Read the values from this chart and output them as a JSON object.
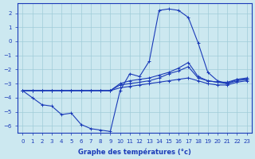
{
  "xlabel": "Graphe des températures (°c)",
  "xlim": [
    -0.5,
    23.5
  ],
  "ylim": [
    -6.5,
    2.7
  ],
  "yticks": [
    2,
    1,
    0,
    -1,
    -2,
    -3,
    -4,
    -5,
    -6
  ],
  "xticks": [
    0,
    1,
    2,
    3,
    4,
    5,
    6,
    7,
    8,
    9,
    10,
    11,
    12,
    13,
    14,
    15,
    16,
    17,
    18,
    19,
    20,
    21,
    22,
    23
  ],
  "bg_color": "#cce8f0",
  "line_color": "#1a3ab8",
  "grid_color": "#a0ccd8",
  "line1_y": [
    -3.5,
    -4.0,
    -4.5,
    -4.6,
    -5.2,
    -5.1,
    -5.9,
    -6.2,
    -6.3,
    -6.4,
    -3.5,
    -2.3,
    -2.5,
    -1.4,
    2.2,
    2.3,
    2.2,
    1.7,
    -0.1,
    -2.2,
    -2.8,
    -3.0,
    -2.7,
    -2.7
  ],
  "line2_y": [
    -3.5,
    -3.5,
    -3.5,
    -3.5,
    -3.5,
    -3.5,
    -3.5,
    -3.5,
    -3.5,
    -3.5,
    -3.3,
    -3.2,
    -3.1,
    -3.0,
    -2.9,
    -2.8,
    -2.7,
    -2.6,
    -2.8,
    -3.0,
    -3.1,
    -3.1,
    -2.9,
    -2.8
  ],
  "line3_y": [
    -3.5,
    -3.5,
    -3.5,
    -3.5,
    -3.5,
    -3.5,
    -3.5,
    -3.5,
    -3.5,
    -3.5,
    -3.1,
    -3.0,
    -2.9,
    -2.8,
    -2.6,
    -2.3,
    -2.1,
    -1.8,
    -2.6,
    -2.8,
    -2.9,
    -2.9,
    -2.7,
    -2.6
  ],
  "line4_y": [
    -3.5,
    -3.5,
    -3.5,
    -3.5,
    -3.5,
    -3.5,
    -3.5,
    -3.5,
    -3.5,
    -3.5,
    -3.0,
    -2.8,
    -2.7,
    -2.6,
    -2.4,
    -2.2,
    -1.9,
    -1.5,
    -2.5,
    -2.8,
    -2.9,
    -3.0,
    -2.8,
    -2.7
  ]
}
